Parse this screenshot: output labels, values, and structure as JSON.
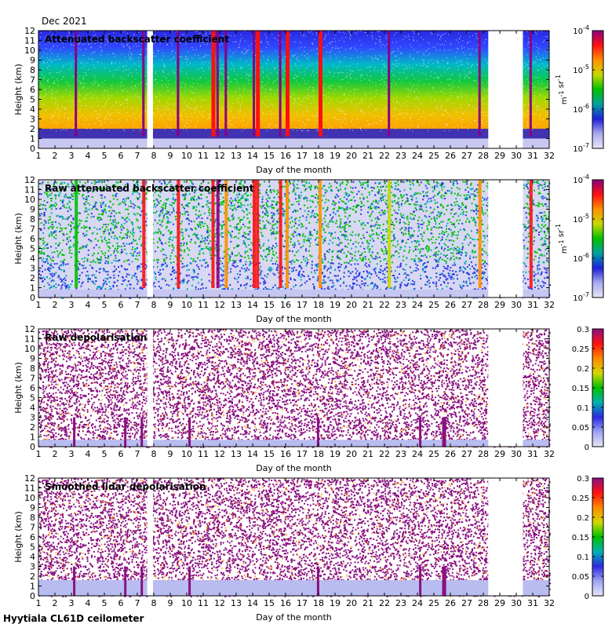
{
  "header": {
    "month": "Dec 2021"
  },
  "footer": {
    "site": "Hyytiala CL61D ceilometer"
  },
  "missing_data": [
    [
      7.6,
      7.95
    ],
    [
      28.3,
      29.0
    ],
    [
      29.0,
      30.4
    ]
  ],
  "chart_data": [
    {
      "type": "heatmap",
      "title": "Attenuated backscatter coefficient",
      "xlabel": "Day of the month",
      "ylabel": "Height (km)",
      "xlim": [
        1,
        32
      ],
      "ylim": [
        0,
        12
      ],
      "xticks": [
        "1",
        "2",
        "3",
        "4",
        "5",
        "6",
        "7",
        "8",
        "9",
        "10",
        "11",
        "12",
        "13",
        "14",
        "15",
        "16",
        "17",
        "18",
        "19",
        "20",
        "21",
        "22",
        "23",
        "24",
        "25",
        "26",
        "27",
        "28",
        "29",
        "30",
        "31",
        "32"
      ],
      "yticks": [
        "0",
        "1",
        "2",
        "3",
        "4",
        "5",
        "6",
        "7",
        "8",
        "9",
        "10",
        "11",
        "12"
      ],
      "colorbar": {
        "scale": "log",
        "range": [
          1e-07,
          0.0001
        ],
        "tick_values": [
          1e-07,
          1e-06,
          1e-05,
          0.0001
        ],
        "tick_labels": [
          "10-7",
          "10-6",
          "10-5",
          "10-4"
        ],
        "unit": "m-1 sr-1"
      }
    },
    {
      "type": "heatmap",
      "title": "Raw attenuated backscatter coefficient",
      "xlabel": "Day of the month",
      "ylabel": "Height (km)",
      "xlim": [
        1,
        32
      ],
      "ylim": [
        0,
        12
      ],
      "xticks": [
        "1",
        "2",
        "3",
        "4",
        "5",
        "6",
        "7",
        "8",
        "9",
        "10",
        "11",
        "12",
        "13",
        "14",
        "15",
        "16",
        "17",
        "18",
        "19",
        "20",
        "21",
        "22",
        "23",
        "24",
        "25",
        "26",
        "27",
        "28",
        "29",
        "30",
        "31",
        "32"
      ],
      "yticks": [
        "0",
        "1",
        "2",
        "3",
        "4",
        "5",
        "6",
        "7",
        "8",
        "9",
        "10",
        "11",
        "12"
      ],
      "colorbar": {
        "scale": "log",
        "range": [
          1e-07,
          0.0001
        ],
        "tick_values": [
          1e-07,
          1e-06,
          1e-05,
          0.0001
        ],
        "tick_labels": [
          "10-7",
          "10-6",
          "10-5",
          "10-4"
        ],
        "unit": "m-1 sr-1"
      }
    },
    {
      "type": "heatmap",
      "title": "Raw depolarisation",
      "xlabel": "Day of the month",
      "ylabel": "Height (km)",
      "xlim": [
        1,
        32
      ],
      "ylim": [
        0,
        12
      ],
      "xticks": [
        "1",
        "2",
        "3",
        "4",
        "5",
        "6",
        "7",
        "8",
        "9",
        "10",
        "11",
        "12",
        "13",
        "14",
        "15",
        "16",
        "17",
        "18",
        "19",
        "20",
        "21",
        "22",
        "23",
        "24",
        "25",
        "26",
        "27",
        "28",
        "29",
        "30",
        "31",
        "32"
      ],
      "yticks": [
        "0",
        "1",
        "2",
        "3",
        "4",
        "5",
        "6",
        "7",
        "8",
        "9",
        "10",
        "11",
        "12"
      ],
      "colorbar": {
        "scale": "linear",
        "range": [
          0,
          0.3
        ],
        "tick_values": [
          0,
          0.05,
          0.1,
          0.15,
          0.2,
          0.25,
          0.3
        ],
        "tick_labels": [
          "0",
          "0.05",
          "0.1",
          "0.15",
          "0.2",
          "0.25",
          "0.3"
        ],
        "unit": ""
      }
    },
    {
      "type": "heatmap",
      "title": "Smoothed lidar depolarisation",
      "xlabel": "Day of the month",
      "ylabel": "Height (km)",
      "xlim": [
        1,
        32
      ],
      "ylim": [
        0,
        12
      ],
      "xticks": [
        "1",
        "2",
        "3",
        "4",
        "5",
        "6",
        "7",
        "8",
        "9",
        "10",
        "11",
        "12",
        "13",
        "14",
        "15",
        "16",
        "17",
        "18",
        "19",
        "20",
        "21",
        "22",
        "23",
        "24",
        "25",
        "26",
        "27",
        "28",
        "29",
        "30",
        "31",
        "32"
      ],
      "yticks": [
        "0",
        "1",
        "2",
        "3",
        "4",
        "5",
        "6",
        "7",
        "8",
        "9",
        "10",
        "11",
        "12"
      ],
      "colorbar": {
        "scale": "linear",
        "range": [
          0,
          0.3
        ],
        "tick_values": [
          0,
          0.05,
          0.1,
          0.15,
          0.2,
          0.25,
          0.3
        ],
        "tick_labels": [
          "0",
          "0.05",
          "0.1",
          "0.15",
          "0.2",
          "0.25",
          "0.3"
        ],
        "unit": ""
      }
    }
  ]
}
